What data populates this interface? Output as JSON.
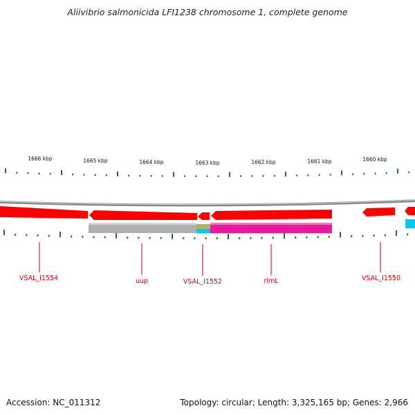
{
  "title": "Aliivibrio salmonicida LFI1238 chromosome 1, complete genome",
  "footer": {
    "accession": "Accession: NC_011312",
    "summary": "Topology: circular; Length: 3,325,165 bp; Genes: 2,966"
  },
  "scale_ticks": [
    {
      "label": "1666 kbp"
    },
    {
      "label": "1665 kbp"
    },
    {
      "label": "1664 kbp"
    },
    {
      "label": "1663 kbp"
    },
    {
      "label": "1662 kbp"
    },
    {
      "label": "1661 kbp"
    },
    {
      "label": "1660 kbp"
    }
  ],
  "gene_labels": [
    {
      "text": "VSAL_I1554"
    },
    {
      "text": "uup"
    },
    {
      "text": "VSAL_I1552"
    },
    {
      "text": "rlmL"
    },
    {
      "text": "VSAL_I1550"
    }
  ],
  "colors": {
    "gene_red": "#ff0000",
    "gene_grey": "#b0b0b0",
    "gene_magenta": "#e8199c",
    "gene_cyan": "#00c8f0",
    "gene_olive": "#b0b070",
    "tick_green": "#1a7a1a",
    "label_red": "#cc0000",
    "backbone": "#8a8a8a"
  }
}
